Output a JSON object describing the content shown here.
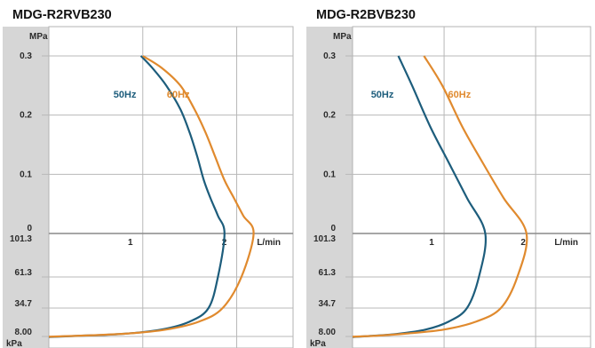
{
  "chart_data": [
    {
      "type": "line",
      "title": "MDG-R2RVB230",
      "x_unit": "L/min",
      "x_ticks": [
        "1",
        "2"
      ],
      "y_top_unit": "MPa",
      "y_top_ticks": [
        "0.3",
        "0.2",
        "0.1",
        "0"
      ],
      "y_bottom_unit": "kPa",
      "y_bottom_ticks": [
        "101.3",
        "61.3",
        "34.7",
        "8.00"
      ],
      "xlim": [
        0,
        2.6
      ],
      "grid": true,
      "series": [
        {
          "name": "50Hz",
          "color": "#1d5d7c",
          "pressure": [
            [
              0.98,
              0.3
            ],
            [
              1.1,
              0.28
            ],
            [
              1.25,
              0.25
            ],
            [
              1.4,
              0.21
            ],
            [
              1.5,
              0.17
            ],
            [
              1.58,
              0.13
            ],
            [
              1.65,
              0.09
            ],
            [
              1.72,
              0.06
            ],
            [
              1.8,
              0.03
            ],
            [
              1.87,
              0.0
            ]
          ],
          "vacuum": [
            [
              1.87,
              101.3
            ],
            [
              1.8,
              61.3
            ],
            [
              1.7,
              34.7
            ],
            [
              1.5,
              22.0
            ],
            [
              1.2,
              14.5
            ],
            [
              0.8,
              10.5
            ],
            [
              0.3,
              8.5
            ],
            [
              0.0,
              7.5
            ]
          ]
        },
        {
          "name": "60Hz",
          "color": "#e08a2e",
          "pressure": [
            [
              1.0,
              0.3
            ],
            [
              1.2,
              0.28
            ],
            [
              1.4,
              0.25
            ],
            [
              1.55,
              0.21
            ],
            [
              1.67,
              0.17
            ],
            [
              1.77,
              0.13
            ],
            [
              1.87,
              0.09
            ],
            [
              1.97,
              0.06
            ],
            [
              2.07,
              0.03
            ],
            [
              2.18,
              0.0
            ]
          ],
          "vacuum": [
            [
              2.18,
              101.3
            ],
            [
              2.05,
              61.3
            ],
            [
              1.85,
              34.7
            ],
            [
              1.6,
              22.0
            ],
            [
              1.25,
              14.5
            ],
            [
              0.85,
              10.8
            ],
            [
              0.3,
              8.6
            ],
            [
              0.0,
              7.8
            ]
          ]
        }
      ]
    },
    {
      "type": "line",
      "title": "MDG-R2BVB230",
      "x_unit": "L/min",
      "x_ticks": [
        "1",
        "2"
      ],
      "y_top_unit": "MPa",
      "y_top_ticks": [
        "0.3",
        "0.2",
        "0.1",
        "0"
      ],
      "y_bottom_unit": "kPa",
      "y_bottom_ticks": [
        "101.3",
        "61.3",
        "34.7",
        "8.00"
      ],
      "xlim": [
        0,
        2.6
      ],
      "grid": true,
      "series": [
        {
          "name": "50Hz",
          "color": "#1d5d7c",
          "pressure": [
            [
              0.5,
              0.3
            ],
            [
              0.65,
              0.25
            ],
            [
              0.85,
              0.18
            ],
            [
              1.05,
              0.12
            ],
            [
              1.25,
              0.06
            ],
            [
              1.45,
              0.0
            ]
          ],
          "vacuum": [
            [
              1.45,
              101.3
            ],
            [
              1.38,
              61.3
            ],
            [
              1.25,
              34.7
            ],
            [
              1.05,
              22.0
            ],
            [
              0.8,
              14.5
            ],
            [
              0.5,
              10.5
            ],
            [
              0.2,
              8.5
            ],
            [
              0.0,
              7.5
            ]
          ]
        },
        {
          "name": "60Hz",
          "color": "#e08a2e",
          "pressure": [
            [
              0.78,
              0.3
            ],
            [
              0.98,
              0.25
            ],
            [
              1.2,
              0.18
            ],
            [
              1.42,
              0.12
            ],
            [
              1.65,
              0.06
            ],
            [
              1.9,
              0.0
            ]
          ],
          "vacuum": [
            [
              1.9,
              101.3
            ],
            [
              1.8,
              61.3
            ],
            [
              1.62,
              34.7
            ],
            [
              1.35,
              22.0
            ],
            [
              1.0,
              14.5
            ],
            [
              0.6,
              10.8
            ],
            [
              0.25,
              8.6
            ],
            [
              0.0,
              7.8
            ]
          ]
        }
      ]
    }
  ]
}
